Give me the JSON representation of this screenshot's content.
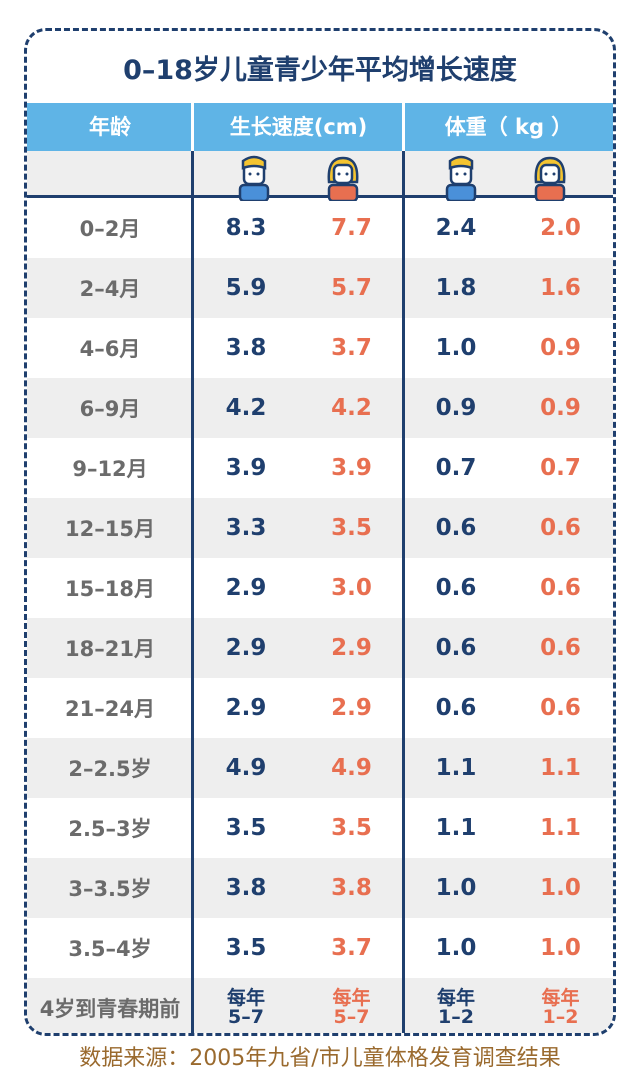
{
  "title": "0–18岁儿童青少年平均增长速度",
  "header": {
    "age": "年龄",
    "growth": "生长速度(cm)",
    "weight": "体重（ kg ）"
  },
  "colors": {
    "boy": "#1f3f6e",
    "girl": "#e86f50",
    "header_bg": "#5fb4e6"
  },
  "rows": [
    {
      "age": "0–2月",
      "gb": "8.3",
      "gg": "7.7",
      "wb": "2.4",
      "wg": "2.0"
    },
    {
      "age": "2–4月",
      "gb": "5.9",
      "gg": "5.7",
      "wb": "1.8",
      "wg": "1.6"
    },
    {
      "age": "4–6月",
      "gb": "3.8",
      "gg": "3.7",
      "wb": "1.0",
      "wg": "0.9"
    },
    {
      "age": "6–9月",
      "gb": "4.2",
      "gg": "4.2",
      "wb": "0.9",
      "wg": "0.9"
    },
    {
      "age": "9–12月",
      "gb": "3.9",
      "gg": "3.9",
      "wb": "0.7",
      "wg": "0.7"
    },
    {
      "age": "12–15月",
      "gb": "3.3",
      "gg": "3.5",
      "wb": "0.6",
      "wg": "0.6"
    },
    {
      "age": "15–18月",
      "gb": "2.9",
      "gg": "3.0",
      "wb": "0.6",
      "wg": "0.6"
    },
    {
      "age": "18–21月",
      "gb": "2.9",
      "gg": "2.9",
      "wb": "0.6",
      "wg": "0.6"
    },
    {
      "age": "21–24月",
      "gb": "2.9",
      "gg": "2.9",
      "wb": "0.6",
      "wg": "0.6"
    },
    {
      "age": "2–2.5岁",
      "gb": "4.9",
      "gg": "4.9",
      "wb": "1.1",
      "wg": "1.1"
    },
    {
      "age": "2.5–3岁",
      "gb": "3.5",
      "gg": "3.5",
      "wb": "1.1",
      "wg": "1.1"
    },
    {
      "age": "3–3.5岁",
      "gb": "3.8",
      "gg": "3.8",
      "wb": "1.0",
      "wg": "1.0"
    },
    {
      "age": "3.5–4岁",
      "gb": "3.5",
      "gg": "3.7",
      "wb": "1.0",
      "wg": "1.0"
    }
  ],
  "last_row": {
    "age": "4岁到青春期前",
    "gb_top": "每年",
    "gb_bottom": "5–7",
    "gg_top": "每年",
    "gg_bottom": "5–7",
    "wb_top": "每年",
    "wb_bottom": "1–2",
    "wg_top": "每年",
    "wg_bottom": "1–2"
  },
  "source": "数据来源：2005年九省/市儿童体格发育调查结果"
}
